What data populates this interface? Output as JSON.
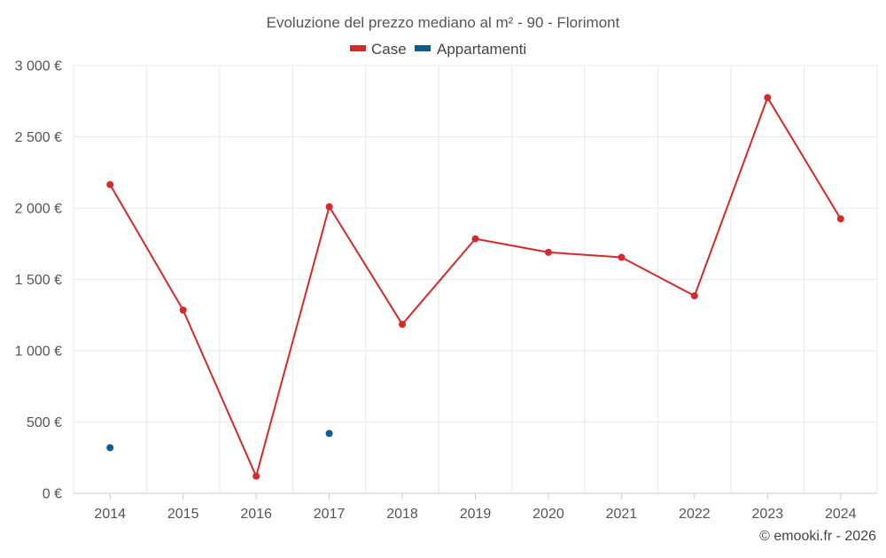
{
  "chart_data": {
    "type": "line",
    "title": "Evoluzione del prezzo mediano al m² - 90 - Florimont",
    "categories": [
      "2014",
      "2015",
      "2016",
      "2017",
      "2018",
      "2019",
      "2020",
      "2021",
      "2022",
      "2023",
      "2024"
    ],
    "series": [
      {
        "name": "Case",
        "color": "#d42a2a",
        "values": [
          2165,
          1285,
          120,
          2010,
          1185,
          1785,
          1690,
          1655,
          1385,
          2775,
          1925
        ]
      },
      {
        "name": "Appartamenti",
        "color": "#0b5c93",
        "values": [
          320,
          null,
          null,
          420,
          null,
          null,
          null,
          null,
          null,
          null,
          null
        ]
      }
    ],
    "yticks": [
      "0 €",
      "500 €",
      "1 000 €",
      "1 500 €",
      "2 000 €",
      "2 500 €",
      "3 000 €"
    ],
    "ylim": [
      0,
      3000
    ],
    "grid": true,
    "legend_position": "top-center"
  },
  "credit": "© emooki.fr - 2026"
}
